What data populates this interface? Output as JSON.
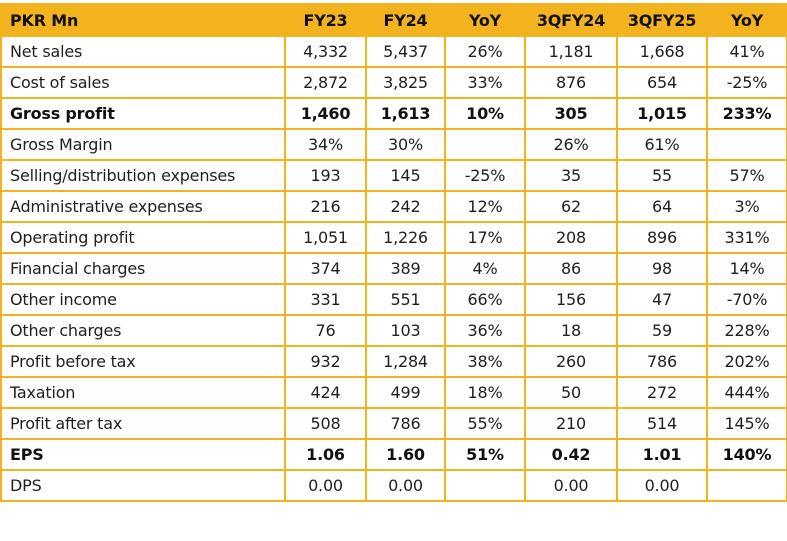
{
  "table": {
    "accent_color": "#f2b31f",
    "headers": [
      "PKR Mn",
      "FY23",
      "FY24",
      "YoY",
      "3QFY24",
      "3QFY25",
      "YoY"
    ],
    "rows": [
      {
        "label": "Net sales",
        "values": [
          "4,332",
          "5,437",
          "26%",
          "1,181",
          "1,668",
          "41%"
        ],
        "bold": false
      },
      {
        "label": "Cost of sales",
        "values": [
          "2,872",
          "3,825",
          "33%",
          "876",
          "654",
          "-25%"
        ],
        "bold": false
      },
      {
        "label": "Gross profit",
        "values": [
          "1,460",
          "1,613",
          "10%",
          "305",
          "1,015",
          "233%"
        ],
        "bold": true
      },
      {
        "label": "Gross Margin",
        "values": [
          "34%",
          "30%",
          "",
          "26%",
          "61%",
          ""
        ],
        "bold": false
      },
      {
        "label": "Selling/distribution expenses",
        "values": [
          "193",
          "145",
          "-25%",
          "35",
          "55",
          "57%"
        ],
        "bold": false
      },
      {
        "label": "Administrative expenses",
        "values": [
          "216",
          "242",
          "12%",
          "62",
          "64",
          "3%"
        ],
        "bold": false
      },
      {
        "label": "Operating profit",
        "values": [
          "1,051",
          "1,226",
          "17%",
          "208",
          "896",
          "331%"
        ],
        "bold": false
      },
      {
        "label": "Financial charges",
        "values": [
          "374",
          "389",
          "4%",
          "86",
          "98",
          "14%"
        ],
        "bold": false
      },
      {
        "label": "Other income",
        "values": [
          "331",
          "551",
          "66%",
          "156",
          "47",
          "-70%"
        ],
        "bold": false
      },
      {
        "label": "Other charges",
        "values": [
          "76",
          "103",
          "36%",
          "18",
          "59",
          "228%"
        ],
        "bold": false
      },
      {
        "label": "Profit before tax",
        "values": [
          "932",
          "1,284",
          "38%",
          "260",
          "786",
          "202%"
        ],
        "bold": false
      },
      {
        "label": "Taxation",
        "values": [
          "424",
          "499",
          "18%",
          "50",
          "272",
          "444%"
        ],
        "bold": false
      },
      {
        "label": "Profit after tax",
        "values": [
          "508",
          "786",
          "55%",
          "210",
          "514",
          "145%"
        ],
        "bold": false
      },
      {
        "label": "EPS",
        "values": [
          "1.06",
          "1.60",
          "51%",
          "0.42",
          "1.01",
          "140%"
        ],
        "bold": true
      },
      {
        "label": "DPS",
        "values": [
          "0.00",
          "0.00",
          "",
          "0.00",
          "0.00",
          ""
        ],
        "bold": false
      }
    ]
  }
}
